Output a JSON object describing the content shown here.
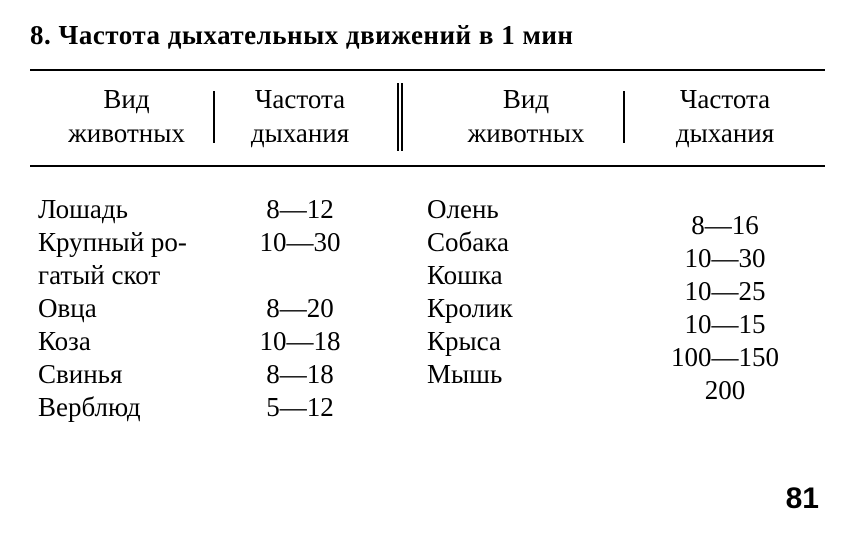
{
  "title": "8. Частота дыхательных движений в 1 мин",
  "headers": {
    "species": "Вид животных",
    "freq": "Частота дыхания"
  },
  "left": {
    "species": [
      "Лошадь",
      "Крупный ро-",
      "гатый скот",
      "Овца",
      "Коза",
      "Свинья",
      "Верблюд"
    ],
    "freq": [
      "8—12",
      "10—30",
      "",
      "8—20",
      "10—18",
      "8—18",
      "5—12"
    ]
  },
  "right": {
    "species": [
      "Олень",
      "Собака",
      "Кошка",
      "Кролик",
      "Крыса",
      "Мышь"
    ],
    "freq": [
      "8—16",
      "10—30",
      "10—25",
      "10—15",
      "100—150",
      "200"
    ]
  },
  "page_number": "81",
  "colors": {
    "text": "#000000",
    "background": "#ffffff",
    "rule": "#000000"
  },
  "fonts": {
    "title_size_pt": 27,
    "body_size_pt": 27,
    "page_num_size_pt": 30
  }
}
